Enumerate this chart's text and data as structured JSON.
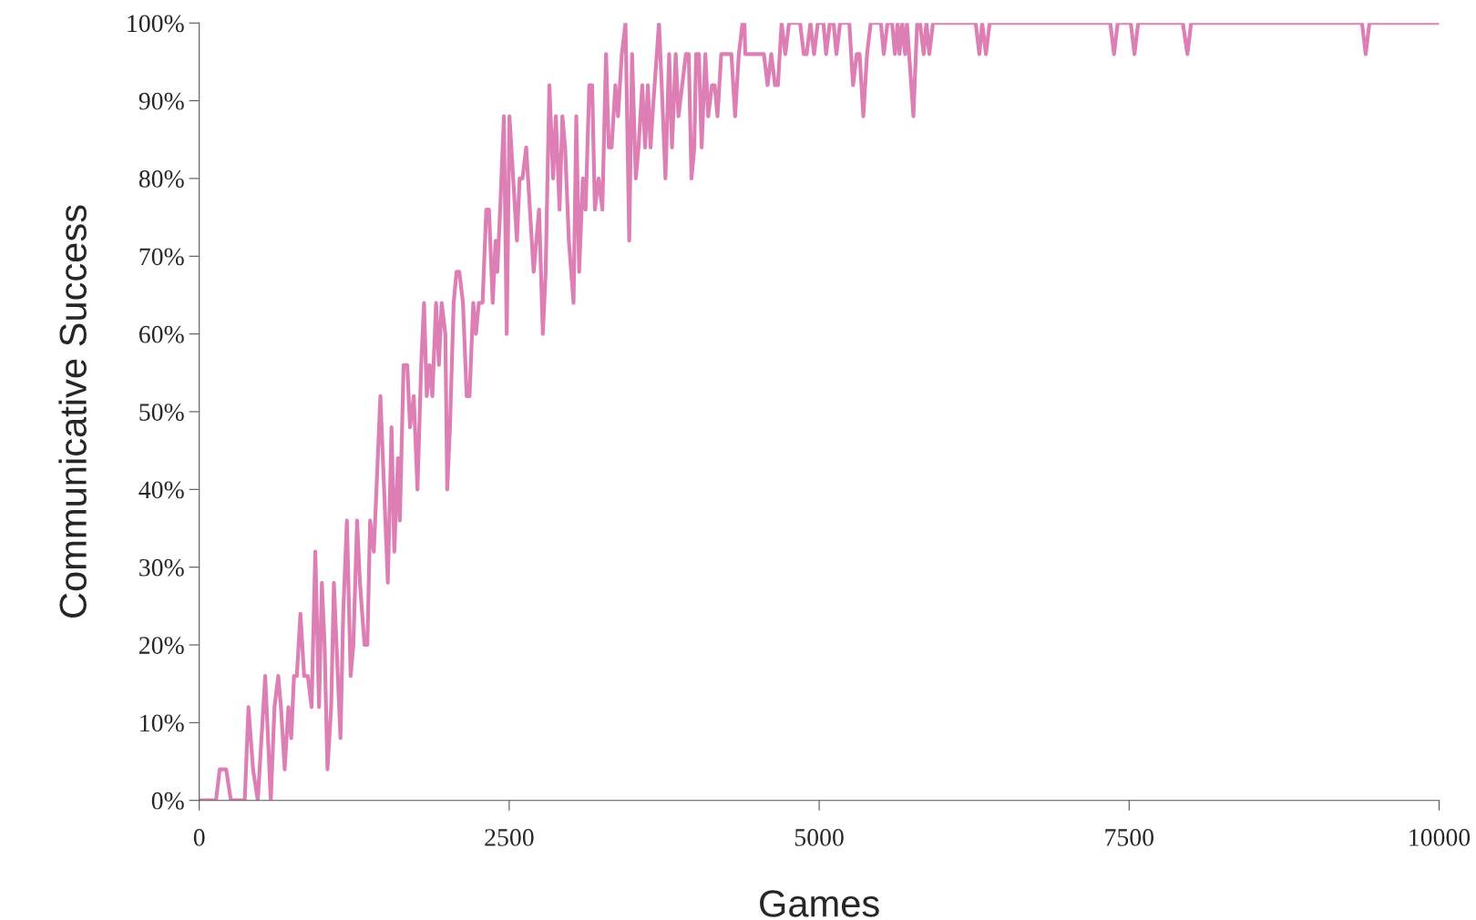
{
  "chart_data": {
    "type": "line",
    "xlabel": "Games",
    "ylabel": "Communicative Success",
    "x": [
      0,
      135,
      165,
      217,
      255,
      367,
      397,
      434,
      472,
      532,
      577,
      607,
      637,
      659,
      689,
      719,
      742,
      764,
      787,
      816,
      846,
      876,
      906,
      936,
      966,
      989,
      1011,
      1034,
      1064,
      1086,
      1139,
      1161,
      1191,
      1221,
      1243,
      1273,
      1296,
      1333,
      1356,
      1378,
      1408,
      1461,
      1521,
      1551,
      1573,
      1603,
      1618,
      1648,
      1678,
      1700,
      1730,
      1760,
      1790,
      1813,
      1835,
      1858,
      1880,
      1910,
      1933,
      1955,
      1985,
      2000,
      2022,
      2052,
      2075,
      2097,
      2127,
      2157,
      2180,
      2210,
      2232,
      2255,
      2285,
      2315,
      2337,
      2367,
      2390,
      2404,
      2427,
      2457,
      2480,
      2502,
      2562,
      2584,
      2607,
      2637,
      2697,
      2741,
      2771,
      2794,
      2824,
      2854,
      2876,
      2906,
      2929,
      2951,
      2981,
      3019,
      3041,
      3064,
      3094,
      3116,
      3146,
      3169,
      3191,
      3221,
      3251,
      3281,
      3303,
      3326,
      3356,
      3378,
      3408,
      3438,
      3468,
      3491,
      3521,
      3543,
      3573,
      3596,
      3618,
      3640,
      3655,
      3708,
      3730,
      3760,
      3790,
      3813,
      3843,
      3865,
      3895,
      3925,
      3948,
      3970,
      3993,
      4007,
      4030,
      4052,
      4082,
      4105,
      4135,
      4157,
      4180,
      4210,
      4292,
      4322,
      4352,
      4382,
      4397,
      4404,
      4554,
      4584,
      4614,
      4644,
      4667,
      4697,
      4727,
      4757,
      4846,
      4876,
      4899,
      4929,
      4959,
      4989,
      5034,
      5056,
      5086,
      5116,
      5139,
      5169,
      5243,
      5273,
      5303,
      5326,
      5356,
      5386,
      5416,
      5498,
      5521,
      5551,
      5588,
      5611,
      5633,
      5648,
      5670,
      5693,
      5708,
      5760,
      5790,
      5813,
      5843,
      5865,
      5888,
      5918,
      6262,
      6292,
      6315,
      6345,
      6375,
      7348,
      7378,
      7408,
      7513,
      7543,
      7573,
      7933,
      7970,
      8000,
      9378,
      9408,
      9438,
      10000
    ],
    "series": [
      {
        "color": "#dd7fb4",
        "values": [
          0,
          0,
          4,
          4,
          0,
          0,
          12,
          4,
          0,
          16,
          0,
          12,
          16,
          12,
          4,
          12,
          8,
          16,
          16,
          24,
          16,
          16,
          12,
          32,
          12,
          28,
          20,
          4,
          12,
          28,
          8,
          24,
          36,
          16,
          20,
          36,
          28,
          20,
          20,
          36,
          32,
          52,
          28,
          48,
          32,
          44,
          36,
          56,
          56,
          48,
          52,
          40,
          56,
          64,
          52,
          56,
          52,
          64,
          56,
          64,
          60,
          40,
          48,
          64,
          68,
          68,
          64,
          52,
          52,
          64,
          60,
          64,
          64,
          76,
          76,
          64,
          72,
          68,
          76,
          88,
          60,
          88,
          72,
          80,
          80,
          84,
          68,
          76,
          60,
          68,
          92,
          80,
          88,
          76,
          88,
          84,
          72,
          64,
          88,
          68,
          80,
          76,
          92,
          92,
          76,
          80,
          76,
          96,
          84,
          84,
          92,
          88,
          96,
          100,
          72,
          96,
          80,
          84,
          92,
          84,
          92,
          84,
          88,
          100,
          92,
          80,
          96,
          84,
          96,
          88,
          92,
          96,
          96,
          80,
          84,
          96,
          96,
          84,
          96,
          88,
          92,
          92,
          88,
          96,
          96,
          88,
          96,
          100,
          100,
          96,
          96,
          92,
          96,
          92,
          92,
          100,
          96,
          100,
          100,
          96,
          96,
          100,
          96,
          100,
          100,
          96,
          100,
          100,
          96,
          100,
          100,
          92,
          96,
          96,
          88,
          96,
          100,
          100,
          96,
          100,
          100,
          96,
          100,
          96,
          100,
          96,
          100,
          88,
          100,
          100,
          96,
          100,
          96,
          100,
          100,
          96,
          100,
          96,
          100,
          100,
          96,
          100,
          100,
          96,
          100,
          100,
          96,
          100,
          100,
          96,
          100,
          100
        ]
      }
    ],
    "xlim": [
      0,
      10000
    ],
    "xticks": [
      0,
      2500,
      5000,
      7500,
      10000
    ],
    "ylim": [
      0,
      100
    ],
    "yticks": [
      {
        "value": 0,
        "label": "0%"
      },
      {
        "value": 10,
        "label": "10%"
      },
      {
        "value": 20,
        "label": "20%"
      },
      {
        "value": 30,
        "label": "30%"
      },
      {
        "value": 40,
        "label": "40%"
      },
      {
        "value": 50,
        "label": "50%"
      },
      {
        "value": 60,
        "label": "60%"
      },
      {
        "value": 70,
        "label": "70%"
      },
      {
        "value": 80,
        "label": "80%"
      },
      {
        "value": 90,
        "label": "90%"
      },
      {
        "value": 100,
        "label": "100%"
      }
    ],
    "grid": false,
    "legend": false,
    "marker": "none",
    "line_style": "solid"
  }
}
